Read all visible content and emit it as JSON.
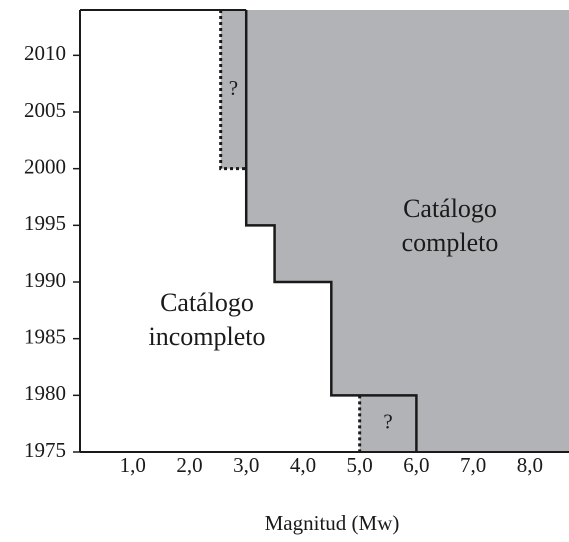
{
  "chart_data": {
    "type": "line",
    "x_label": "Magnitud (Mw)",
    "xlim": [
      0.07,
      8.69
    ],
    "ylim": [
      1975,
      2014
    ],
    "xticks": [
      {
        "value": 1,
        "label": "1,0"
      },
      {
        "value": 2,
        "label": "2,0"
      },
      {
        "value": 3,
        "label": "3,0"
      },
      {
        "value": 4,
        "label": "4,0"
      },
      {
        "value": 5,
        "label": "5,0"
      },
      {
        "value": 6,
        "label": "6,0"
      },
      {
        "value": 7,
        "label": "7,0"
      },
      {
        "value": 8,
        "label": "8,0"
      }
    ],
    "yticks": [
      1975,
      1980,
      1985,
      1990,
      1995,
      2000,
      2005,
      2010
    ],
    "fill_color": "#b1b3b6",
    "line_color": "#1a1a1a",
    "complete_boundary": {
      "x": [
        3.0,
        3.0,
        3.5,
        3.5,
        4.5,
        4.5,
        6.0,
        6.0
      ],
      "y": [
        2014,
        1995,
        1995,
        1990,
        1990,
        1980,
        1980,
        1975
      ]
    },
    "uncertain_boundaries": [
      {
        "x": [
          2.55,
          2.55,
          3.0
        ],
        "y": [
          2014,
          2000,
          2000
        ],
        "label": "?"
      },
      {
        "x": [
          5.0,
          5.0
        ],
        "y": [
          1980,
          1975
        ],
        "label": "?"
      }
    ],
    "annotations": [
      [
        "Catálogo",
        "completo"
      ],
      [
        "Catálogo",
        "incompleto"
      ]
    ]
  }
}
